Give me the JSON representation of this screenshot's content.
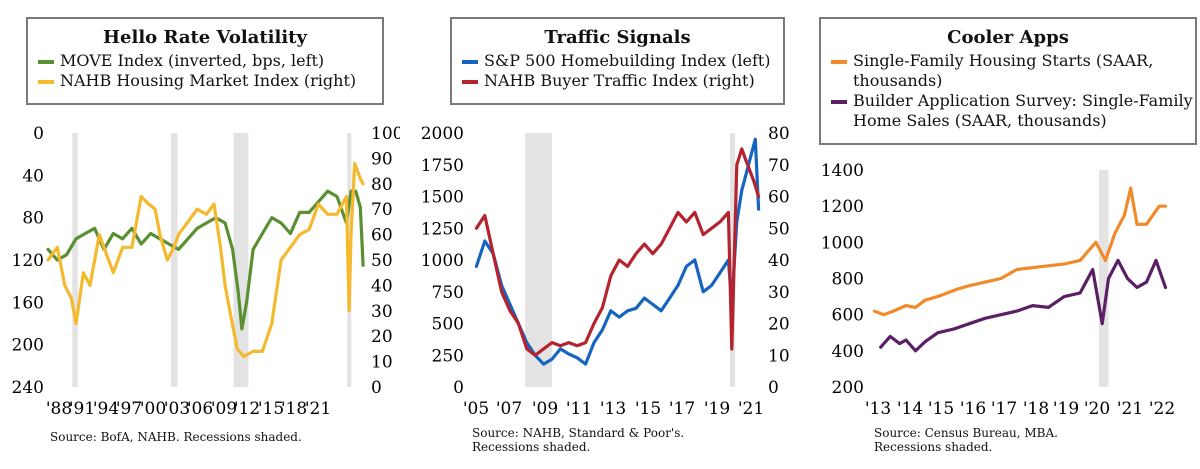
{
  "chart_data": [
    {
      "type": "line",
      "title": "Hello Rate Volatility",
      "source": "Source: BofA, NAHB. Recessions shaded.",
      "x_ticks": [
        "'88",
        "'91",
        "'94",
        "'97",
        "'00",
        "'03",
        "'06",
        "'09",
        "'12",
        "'15",
        "'18",
        "'21"
      ],
      "xlim": [
        1988,
        2022
      ],
      "left_axis": {
        "ticks": [
          "0",
          "40",
          "80",
          "120",
          "160",
          "200",
          "240"
        ],
        "range": [
          0,
          240
        ],
        "inverted": true
      },
      "right_axis": {
        "ticks": [
          "0",
          "10",
          "20",
          "30",
          "40",
          "50",
          "60",
          "70",
          "80",
          "90",
          "100"
        ],
        "range": [
          0,
          100
        ]
      },
      "recessions": [
        [
          1990.6,
          1991.2
        ],
        [
          2001.2,
          2001.9
        ],
        [
          2007.9,
          2009.5
        ],
        [
          2020.1,
          2020.4
        ]
      ],
      "series": [
        {
          "name": "MOVE Index (inverted, bps, left)",
          "color": "#5a8f32",
          "axis": "left",
          "x": [
            1988,
            1989,
            1990,
            1991,
            1992,
            1993,
            1994,
            1995,
            1996,
            1997,
            1998,
            1999,
            2000,
            2001,
            2002,
            2003,
            2004,
            2005,
            2006,
            2007,
            2007.8,
            2008.4,
            2008.8,
            2009.3,
            2010,
            2011,
            2012,
            2013,
            2014,
            2015,
            2016,
            2017,
            2018,
            2019,
            2020,
            2020.5,
            2021,
            2021.5,
            2021.8
          ],
          "values": [
            110,
            120,
            115,
            100,
            95,
            90,
            110,
            95,
            100,
            90,
            105,
            95,
            100,
            105,
            110,
            100,
            90,
            85,
            80,
            85,
            110,
            150,
            185,
            160,
            110,
            95,
            80,
            85,
            95,
            75,
            75,
            65,
            55,
            60,
            85,
            55,
            55,
            70,
            125
          ]
        },
        {
          "name": "NAHB Housing Market Index (right)",
          "color": "#f5b92e",
          "axis": "right",
          "x": [
            1988,
            1989,
            1989.8,
            1990.5,
            1991,
            1991.8,
            1992.5,
            1993.5,
            1994,
            1995,
            1996,
            1997,
            1998,
            1998.8,
            1999.5,
            2000,
            2000.8,
            2001.5,
            2002,
            2003,
            2004,
            2005,
            2005.8,
            2006.5,
            2007,
            2007.5,
            2008.3,
            2009,
            2010,
            2011,
            2012,
            2013,
            2014,
            2015,
            2016,
            2017,
            2018,
            2019,
            2020,
            2020.3,
            2020.5,
            2020.9,
            2021.5,
            2021.8
          ],
          "values": [
            50,
            55,
            40,
            35,
            25,
            45,
            40,
            60,
            55,
            45,
            55,
            55,
            75,
            72,
            70,
            60,
            50,
            55,
            60,
            65,
            70,
            68,
            72,
            55,
            40,
            30,
            15,
            12,
            14,
            14,
            25,
            50,
            55,
            60,
            62,
            72,
            68,
            68,
            75,
            30,
            60,
            88,
            82,
            80
          ]
        }
      ]
    },
    {
      "type": "line",
      "title": "Traffic Signals",
      "source": "Source:  NAHB, Standard & Poor's. Recessions shaded.",
      "source_lines": [
        "Source:  NAHB, Standard & Poor's.",
        "Recessions shaded."
      ],
      "x_ticks": [
        "'05",
        "'07",
        "'09",
        "'11",
        "'13",
        "'15",
        "'17",
        "'19",
        "'21"
      ],
      "xlim": [
        2004.5,
        2022
      ],
      "left_axis": {
        "ticks": [
          "0",
          "250",
          "500",
          "750",
          "1000",
          "1250",
          "1500",
          "1750",
          "2000"
        ],
        "range": [
          0,
          2000
        ]
      },
      "right_axis": {
        "ticks": [
          "0",
          "10",
          "20",
          "30",
          "40",
          "50",
          "60",
          "70",
          "80"
        ],
        "range": [
          0,
          80
        ]
      },
      "recessions": [
        [
          2007.9,
          2009.5
        ],
        [
          2020.1,
          2020.4
        ]
      ],
      "series": [
        {
          "name": "S&P 500 Homebuilding Index (left)",
          "color": "#1565c0",
          "axis": "left",
          "x": [
            2005,
            2005.5,
            2006,
            2006.5,
            2007,
            2007.5,
            2008,
            2008.5,
            2009,
            2009.5,
            2010,
            2010.5,
            2011,
            2011.5,
            2012,
            2012.5,
            2013,
            2013.5,
            2014,
            2014.5,
            2015,
            2015.5,
            2016,
            2016.5,
            2017,
            2017.5,
            2018,
            2018.5,
            2019,
            2019.5,
            2020,
            2020.2,
            2020.5,
            2020.8,
            2021,
            2021.3,
            2021.6,
            2021.8
          ],
          "values": [
            950,
            1150,
            1050,
            800,
            650,
            500,
            350,
            250,
            180,
            220,
            300,
            260,
            230,
            180,
            350,
            450,
            600,
            550,
            600,
            620,
            700,
            650,
            600,
            700,
            800,
            950,
            1000,
            750,
            800,
            900,
            1000,
            650,
            1300,
            1550,
            1650,
            1800,
            1950,
            1400
          ]
        },
        {
          "name": "NAHB Buyer Traffic Index (right)",
          "color": "#b5232f",
          "axis": "right",
          "x": [
            2005,
            2005.5,
            2006,
            2006.5,
            2007,
            2007.5,
            2008,
            2008.5,
            2009,
            2009.5,
            2010,
            2010.5,
            2011,
            2011.5,
            2012,
            2012.5,
            2013,
            2013.5,
            2014,
            2014.5,
            2015,
            2015.5,
            2016,
            2016.5,
            2017,
            2017.5,
            2018,
            2018.5,
            2019,
            2019.5,
            2020,
            2020.2,
            2020.5,
            2020.8,
            2021,
            2021.5,
            2021.8
          ],
          "values": [
            50,
            54,
            42,
            30,
            24,
            20,
            12,
            10,
            12,
            14,
            13,
            14,
            13,
            14,
            20,
            25,
            35,
            40,
            38,
            42,
            45,
            42,
            45,
            50,
            55,
            52,
            55,
            48,
            50,
            52,
            55,
            12,
            70,
            75,
            72,
            65,
            60
          ]
        }
      ]
    },
    {
      "type": "line",
      "title": "Cooler Apps",
      "source": "Source:  Census Bureau, MBA. Recessions shaded.",
      "source_lines": [
        "Source:  Census Bureau, MBA.",
        "Recessions shaded."
      ],
      "x_ticks": [
        "'13",
        "'14",
        "'15",
        "'16",
        "'17",
        "'18",
        "'19",
        "'20",
        "'21",
        "'22"
      ],
      "xlim": [
        2012.8,
        2022.5
      ],
      "left_axis": {
        "ticks": [
          "200",
          "400",
          "600",
          "800",
          "1000",
          "1200",
          "1400"
        ],
        "range": [
          200,
          1400
        ]
      },
      "recessions": [
        [
          2020.1,
          2020.4
        ]
      ],
      "series": [
        {
          "name": "Single-Family Housing Starts (SAAR, thousands)",
          "color": "#f08a2c",
          "axis": "left",
          "x": [
            2013,
            2013.3,
            2013.6,
            2014,
            2014.3,
            2014.6,
            2015,
            2015.3,
            2015.6,
            2016,
            2016.5,
            2017,
            2017.5,
            2018,
            2018.5,
            2019,
            2019.5,
            2020,
            2020.3,
            2020.6,
            2020.9,
            2021.1,
            2021.3,
            2021.6,
            2022,
            2022.2
          ],
          "values": [
            620,
            600,
            620,
            650,
            640,
            680,
            700,
            720,
            740,
            760,
            780,
            800,
            850,
            860,
            870,
            880,
            900,
            1000,
            900,
            1050,
            1150,
            1300,
            1100,
            1100,
            1200,
            1200
          ]
        },
        {
          "name": "Builder Application Survey: Single-Family Home Sales (SAAR, thousands)",
          "color": "#5b1f66",
          "axis": "left",
          "x": [
            2013.2,
            2013.5,
            2013.8,
            2014,
            2014.3,
            2014.6,
            2015,
            2015.5,
            2016,
            2016.5,
            2017,
            2017.5,
            2018,
            2018.5,
            2019,
            2019.5,
            2019.9,
            2020.2,
            2020.4,
            2020.7,
            2021,
            2021.3,
            2021.6,
            2021.9,
            2022.2
          ],
          "values": [
            420,
            480,
            440,
            460,
            400,
            450,
            500,
            520,
            550,
            580,
            600,
            620,
            650,
            640,
            700,
            720,
            850,
            550,
            800,
            900,
            800,
            750,
            780,
            900,
            750
          ]
        }
      ]
    }
  ],
  "legend_titles": [
    "Hello Rate Volatility",
    "Traffic Signals",
    "Cooler Apps"
  ]
}
